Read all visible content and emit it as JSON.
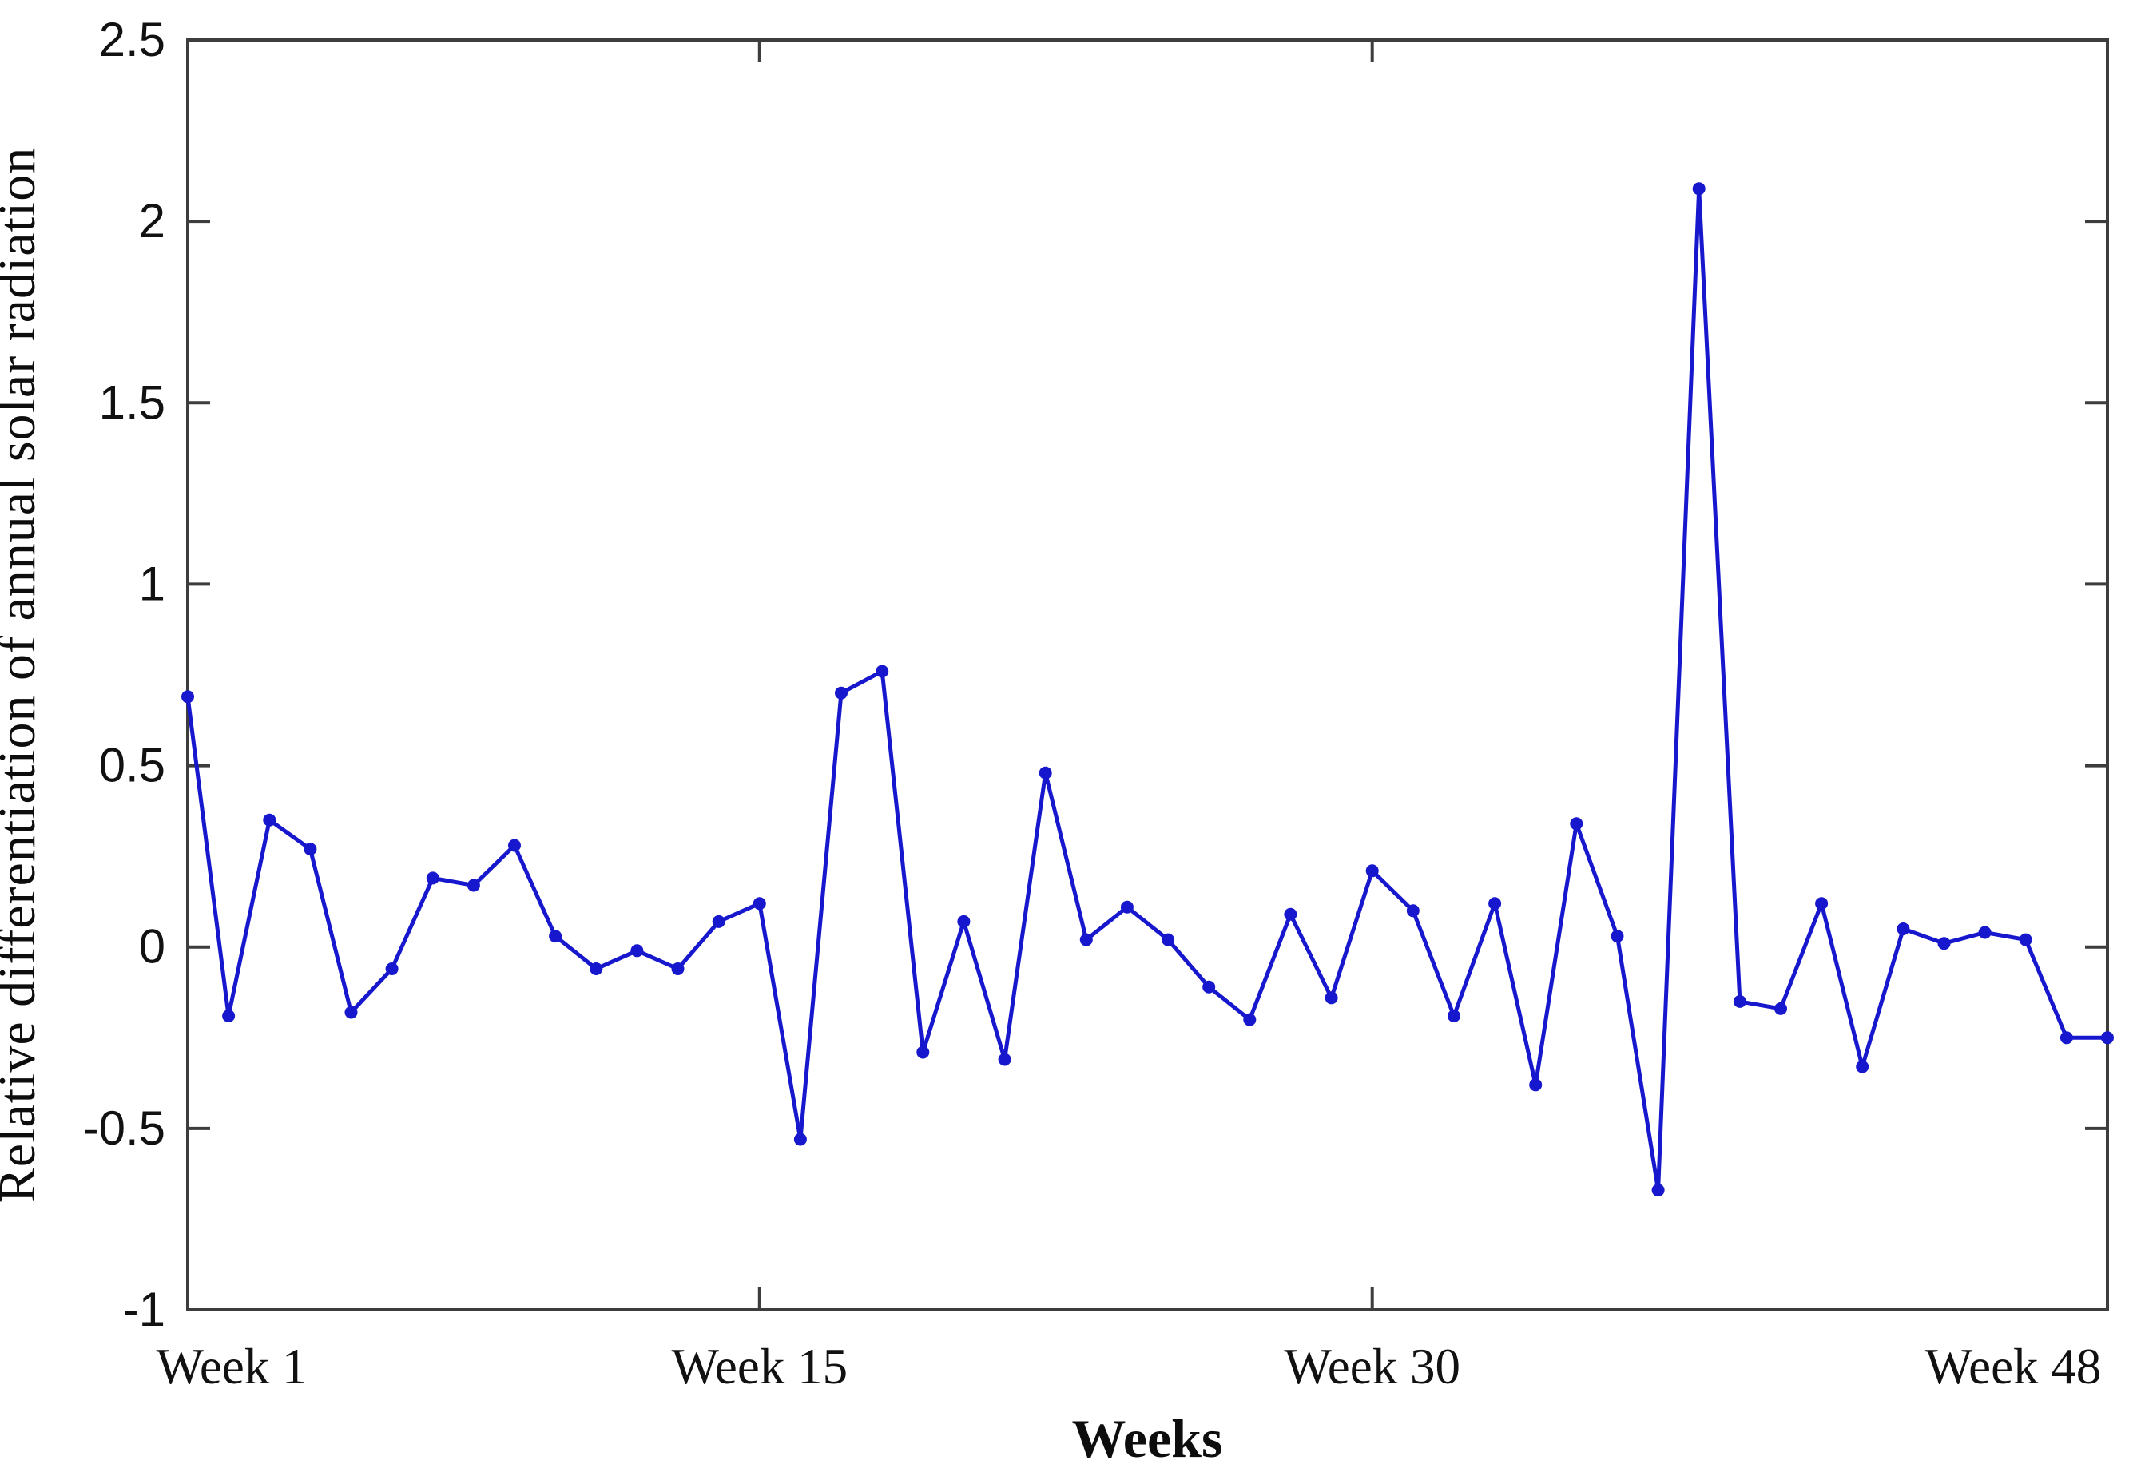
{
  "figure": {
    "background": "#ffffff",
    "axis_color": "#3d3d3d",
    "text_color": "#111111"
  },
  "chart_data": {
    "type": "line",
    "title": "",
    "xlabel": "Weeks",
    "ylabel": "Relative differentiation of annual solar radiation",
    "line_color": "#1717cd",
    "marker": "dot",
    "grid": false,
    "legend": null,
    "xlim": [
      1,
      48
    ],
    "ylim": [
      -1,
      2.5
    ],
    "yticks": [
      2.5,
      2,
      1.5,
      1,
      0.5,
      0,
      -0.5,
      -1
    ],
    "ytick_labels": [
      "2.5",
      "2",
      "1.5",
      "1",
      "0.5",
      "0",
      "-0.5",
      "-1"
    ],
    "xticks": [
      {
        "week": 1,
        "label": "Week 1"
      },
      {
        "week": 15,
        "label": "Week 15"
      },
      {
        "week": 30,
        "label": "Week 30"
      },
      {
        "week": 48,
        "label": "Week 48"
      }
    ],
    "x": [
      1,
      2,
      3,
      4,
      5,
      6,
      7,
      8,
      9,
      10,
      11,
      12,
      13,
      14,
      15,
      16,
      17,
      18,
      19,
      20,
      21,
      22,
      23,
      24,
      25,
      26,
      27,
      28,
      29,
      30,
      31,
      32,
      33,
      34,
      35,
      36,
      37,
      38,
      39,
      40,
      41,
      42,
      43,
      44,
      45,
      46,
      47,
      48
    ],
    "values": [
      0.69,
      -0.19,
      0.35,
      0.27,
      -0.18,
      -0.06,
      0.19,
      0.17,
      0.28,
      0.03,
      -0.06,
      -0.01,
      -0.06,
      0.07,
      0.12,
      -0.53,
      0.7,
      0.76,
      -0.29,
      0.07,
      -0.31,
      0.48,
      0.02,
      0.11,
      0.02,
      -0.11,
      -0.2,
      0.09,
      -0.14,
      0.21,
      0.1,
      -0.19,
      0.12,
      -0.38,
      0.34,
      0.03,
      -0.67,
      2.09,
      -0.15,
      -0.17,
      0.12,
      -0.33,
      0.05,
      0.01,
      0.04,
      0.02,
      -0.25,
      -0.25
    ]
  }
}
